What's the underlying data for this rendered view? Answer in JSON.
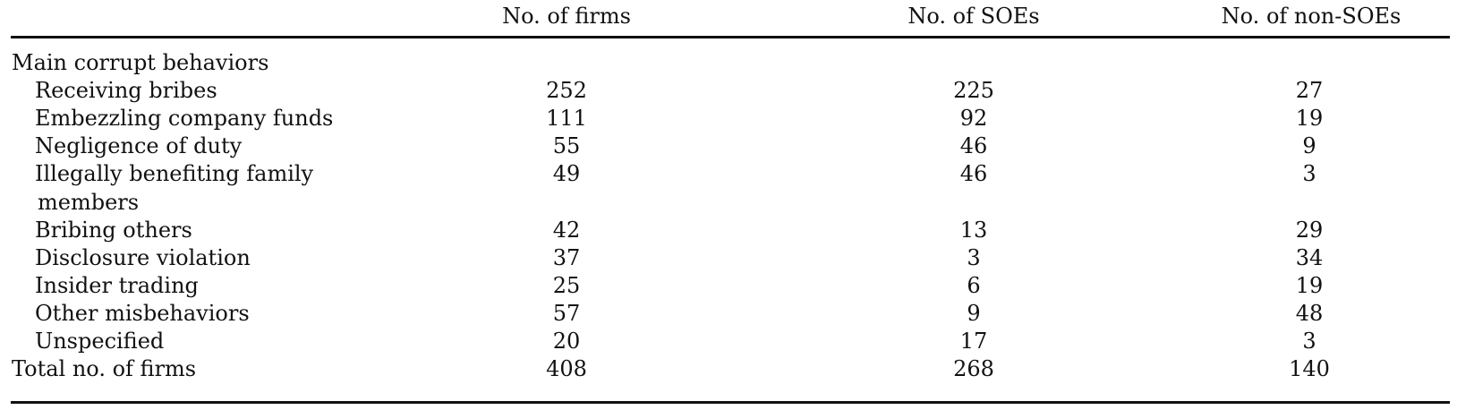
{
  "table": {
    "headers": {
      "blank": "",
      "firms": "No. of firms",
      "soes": "No. of SOEs",
      "non_soes": "No. of non-SOEs"
    },
    "section_label": "Main corrupt behaviors",
    "rows": [
      {
        "label": "Receiving bribes",
        "firms": "252",
        "soes": "225",
        "non_soes": "27"
      },
      {
        "label": "Embezzling company funds",
        "firms": "111",
        "soes": "92",
        "non_soes": "19"
      },
      {
        "label": "Negligence of duty",
        "firms": "55",
        "soes": "46",
        "non_soes": "9"
      },
      {
        "label": "Illegally benefiting family",
        "label_cont": "members",
        "firms": "49",
        "soes": "46",
        "non_soes": "3"
      },
      {
        "label": "Bribing others",
        "firms": "42",
        "soes": "13",
        "non_soes": "29"
      },
      {
        "label": "Disclosure violation",
        "firms": "37",
        "soes": "3",
        "non_soes": "34"
      },
      {
        "label": "Insider trading",
        "firms": "25",
        "soes": "6",
        "non_soes": "19"
      },
      {
        "label": "Other misbehaviors",
        "firms": "57",
        "soes": "9",
        "non_soes": "48"
      },
      {
        "label": "Unspecified",
        "firms": "20",
        "soes": "17",
        "non_soes": "3"
      }
    ],
    "total": {
      "label": "Total no. of firms",
      "firms": "408",
      "soes": "268",
      "non_soes": "140"
    }
  }
}
